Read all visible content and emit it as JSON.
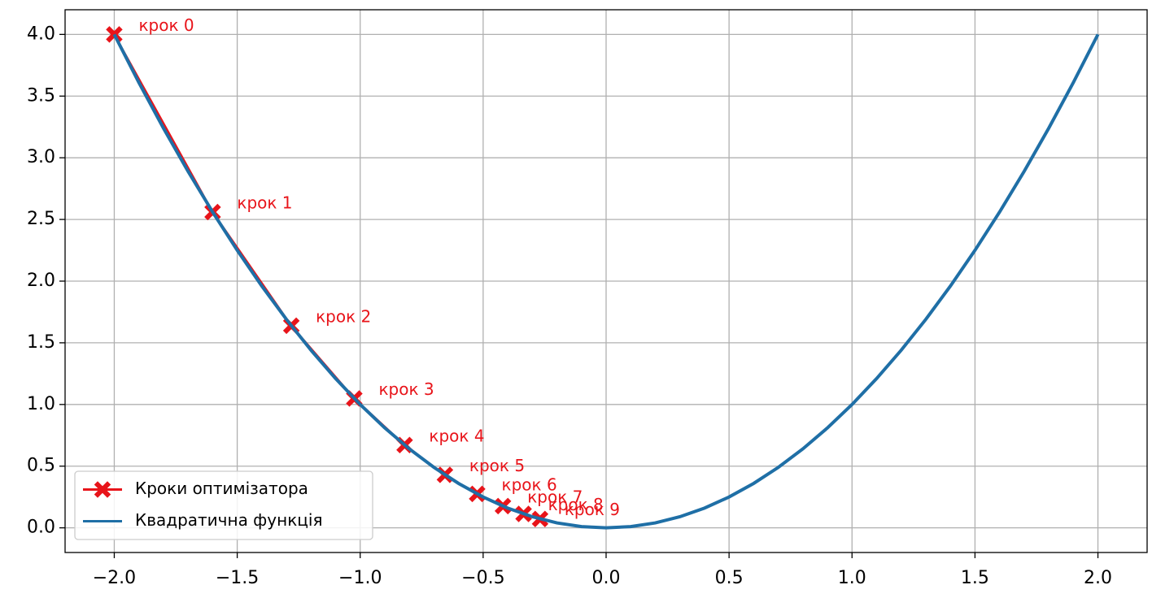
{
  "chart_data": {
    "type": "line",
    "xlim": [
      -2.2,
      2.2
    ],
    "ylim": [
      -0.2,
      4.2
    ],
    "xticks": [
      {
        "value": -2,
        "label": "−2.0"
      },
      {
        "value": -1.5,
        "label": "−1.5"
      },
      {
        "value": -1,
        "label": "−1.0"
      },
      {
        "value": -0.5,
        "label": "−0.5"
      },
      {
        "value": 0,
        "label": "0.0"
      },
      {
        "value": 0.5,
        "label": "0.5"
      },
      {
        "value": 1,
        "label": "1.0"
      },
      {
        "value": 1.5,
        "label": "1.5"
      },
      {
        "value": 2,
        "label": "2.0"
      }
    ],
    "yticks": [
      {
        "value": 0,
        "label": "0.0"
      },
      {
        "value": 0.5,
        "label": "0.5"
      },
      {
        "value": 1,
        "label": "1.0"
      },
      {
        "value": 1.5,
        "label": "1.5"
      },
      {
        "value": 2,
        "label": "2.0"
      },
      {
        "value": 2.5,
        "label": "2.5"
      },
      {
        "value": 3,
        "label": "3.0"
      },
      {
        "value": 3.5,
        "label": "3.5"
      },
      {
        "value": 4,
        "label": "4.0"
      }
    ],
    "grid": true,
    "legend": "lower left",
    "series": [
      {
        "name": "Кроки оптимізатора",
        "color": "#e8141a",
        "marker": "X",
        "x": [
          -2,
          -1.6,
          -1.28,
          -1.024,
          -0.8192,
          -0.65536,
          -0.524288,
          -0.4194304,
          -0.33554432,
          -0.268435456
        ],
        "values": [
          4,
          2.56,
          1.6384,
          1.048576,
          0.67108864,
          0.4294967296,
          0.274877906944,
          0.17592186044416,
          0.1125899906842624,
          0.07205759403792794
        ],
        "point_labels": [
          "крок 0",
          "крок 1",
          "крок 2",
          "крок 3",
          "крок 4",
          "крок 5",
          "крок 6",
          "крок 7",
          "крок 8",
          "крок 9"
        ]
      },
      {
        "name": "Квадратична функція",
        "color": "#1f6fa6",
        "x": [
          -2,
          -1.9,
          -1.8,
          -1.7,
          -1.6,
          -1.5,
          -1.4,
          -1.3,
          -1.2,
          -1.1,
          -1,
          -0.9,
          -0.8,
          -0.7,
          -0.6,
          -0.5,
          -0.4,
          -0.3,
          -0.2,
          -0.1,
          0,
          0.1,
          0.2,
          0.3,
          0.4,
          0.5,
          0.6,
          0.7,
          0.8,
          0.9,
          1,
          1.1,
          1.2,
          1.3,
          1.4,
          1.5,
          1.6,
          1.7,
          1.8,
          1.9,
          2
        ],
        "values": [
          4,
          3.61,
          3.24,
          2.89,
          2.56,
          2.25,
          1.96,
          1.69,
          1.44,
          1.21,
          1,
          0.81,
          0.64,
          0.49,
          0.36,
          0.25,
          0.16,
          0.09,
          0.04,
          0.01,
          0,
          0.01,
          0.04,
          0.09,
          0.16,
          0.25,
          0.36,
          0.49,
          0.64,
          0.81,
          1,
          1.21,
          1.44,
          1.69,
          1.96,
          2.25,
          2.56,
          2.89,
          3.24,
          3.61,
          4
        ]
      }
    ]
  }
}
